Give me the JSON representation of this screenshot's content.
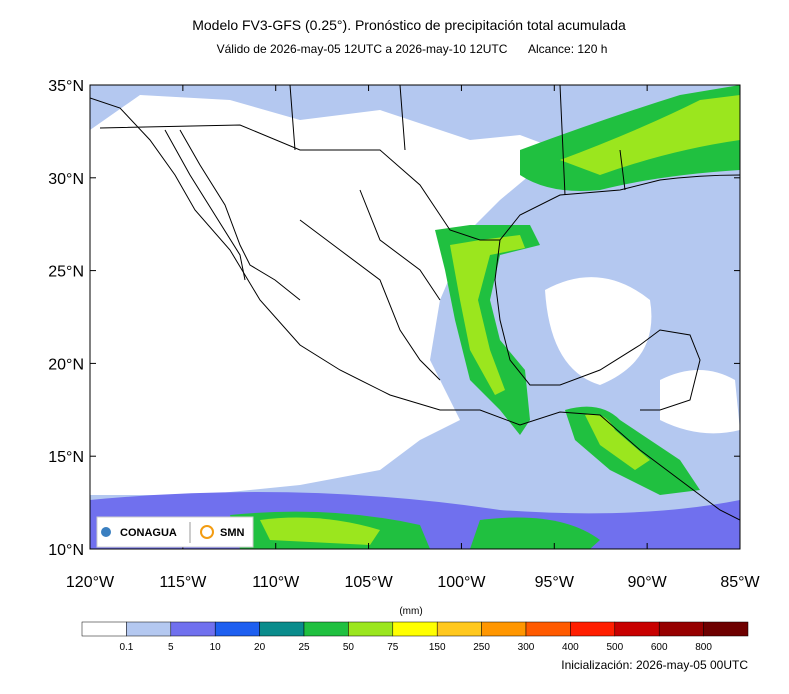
{
  "header": {
    "title": "Modelo FV3-GFS (0.25°). Pronóstico de precipitación total acumulada",
    "valid": "Válido de 2026-may-05 12UTC a 2026-may-10 12UTC",
    "range": "Alcance: 120 h"
  },
  "map": {
    "lat_ticks": [
      "35°N",
      "30°N",
      "25°N",
      "20°N",
      "15°N",
      "10°N"
    ],
    "lon_ticks": [
      "120°W",
      "115°W",
      "110°W",
      "105°W",
      "100°W",
      "95°W",
      "90°W",
      "85°W"
    ]
  },
  "logos": {
    "conagua": "CONAGUA",
    "smn": "SMN"
  },
  "colorbar": {
    "unit": "(mm)",
    "labels": [
      "0.1",
      "5",
      "10",
      "20",
      "25",
      "50",
      "75",
      "150",
      "250",
      "300",
      "400",
      "500",
      "600",
      "800"
    ],
    "colors": [
      "#ffffff",
      "#b4c8f0",
      "#7070ee",
      "#1e5ff0",
      "#0a8c8c",
      "#20c040",
      "#9be61e",
      "#ffff00",
      "#ffc81e",
      "#ff9600",
      "#ff5a00",
      "#ff1e00",
      "#c80000",
      "#960000",
      "#6e0000"
    ]
  },
  "footer": {
    "init": "Inicialización: 2026-may-05 00UTC"
  }
}
